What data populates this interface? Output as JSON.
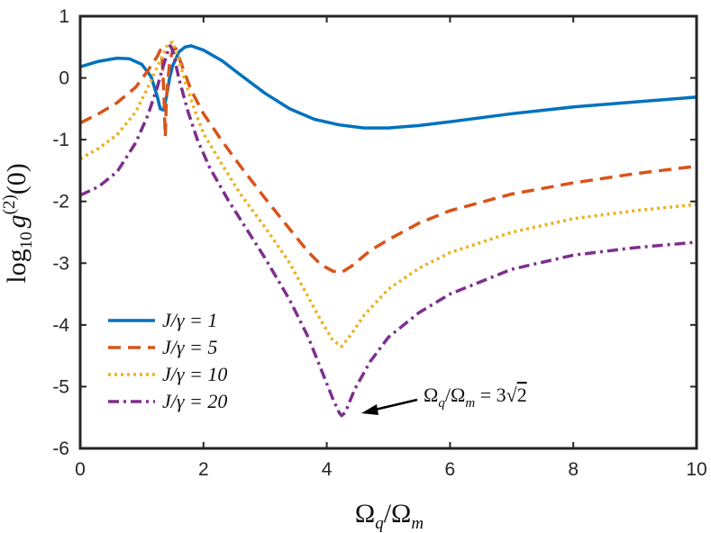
{
  "chart_data": {
    "type": "line",
    "xlabel": "Ω_q/Ω_m",
    "ylabel": "log10 g(2)(0)",
    "xlim": [
      0,
      10
    ],
    "ylim": [
      -6,
      1
    ],
    "xticks": [
      0,
      2,
      4,
      6,
      8,
      10
    ],
    "yticks": [
      1,
      0,
      -1,
      -2,
      -3,
      -4,
      -5,
      -6
    ],
    "grid": false,
    "legend_position": "bottom-left",
    "series": [
      {
        "name": "J/γ = 1",
        "color": "#0072BD",
        "dash": "solid",
        "points": [
          [
            0,
            0.18
          ],
          [
            0.3,
            0.27
          ],
          [
            0.6,
            0.32
          ],
          [
            0.8,
            0.31
          ],
          [
            1.0,
            0.22
          ],
          [
            1.15,
            0.02
          ],
          [
            1.25,
            -0.3
          ],
          [
            1.3,
            -0.5
          ],
          [
            1.35,
            -0.52
          ],
          [
            1.4,
            -0.3
          ],
          [
            1.45,
            0.0
          ],
          [
            1.5,
            0.2
          ],
          [
            1.55,
            0.3
          ],
          [
            1.6,
            0.42
          ],
          [
            1.7,
            0.5
          ],
          [
            1.8,
            0.52
          ],
          [
            2.0,
            0.45
          ],
          [
            2.3,
            0.28
          ],
          [
            2.6,
            0.05
          ],
          [
            3.0,
            -0.25
          ],
          [
            3.4,
            -0.5
          ],
          [
            3.8,
            -0.67
          ],
          [
            4.2,
            -0.76
          ],
          [
            4.6,
            -0.81
          ],
          [
            5.0,
            -0.81
          ],
          [
            5.5,
            -0.77
          ],
          [
            6.0,
            -0.71
          ],
          [
            7.0,
            -0.58
          ],
          [
            8.0,
            -0.47
          ],
          [
            9.0,
            -0.39
          ],
          [
            10.0,
            -0.31
          ]
        ]
      },
      {
        "name": "J/γ = 5",
        "color": "#D95319",
        "dash": "dashed",
        "points": [
          [
            0,
            -0.73
          ],
          [
            0.3,
            -0.58
          ],
          [
            0.6,
            -0.4
          ],
          [
            0.9,
            -0.15
          ],
          [
            1.1,
            0.12
          ],
          [
            1.25,
            0.35
          ],
          [
            1.3,
            0.45
          ],
          [
            1.33,
            0.3
          ],
          [
            1.36,
            -0.3
          ],
          [
            1.38,
            -0.95
          ],
          [
            1.4,
            -0.3
          ],
          [
            1.45,
            0.25
          ],
          [
            1.5,
            0.45
          ],
          [
            1.55,
            0.48
          ],
          [
            1.65,
            0.2
          ],
          [
            1.8,
            -0.2
          ],
          [
            2.0,
            -0.58
          ],
          [
            2.3,
            -1.02
          ],
          [
            2.6,
            -1.43
          ],
          [
            3.0,
            -1.95
          ],
          [
            3.4,
            -2.45
          ],
          [
            3.7,
            -2.82
          ],
          [
            3.9,
            -3.02
          ],
          [
            4.1,
            -3.13
          ],
          [
            4.24,
            -3.15
          ],
          [
            4.4,
            -3.05
          ],
          [
            4.7,
            -2.8
          ],
          [
            5.0,
            -2.62
          ],
          [
            5.5,
            -2.35
          ],
          [
            6.0,
            -2.15
          ],
          [
            7.0,
            -1.88
          ],
          [
            8.0,
            -1.7
          ],
          [
            9.0,
            -1.55
          ],
          [
            10.0,
            -1.43
          ]
        ]
      },
      {
        "name": "J/γ = 10",
        "color": "#EDB120",
        "dash": "dotted",
        "points": [
          [
            0,
            -1.31
          ],
          [
            0.3,
            -1.14
          ],
          [
            0.6,
            -0.92
          ],
          [
            0.9,
            -0.55
          ],
          [
            1.1,
            -0.15
          ],
          [
            1.25,
            0.18
          ],
          [
            1.35,
            0.38
          ],
          [
            1.42,
            0.55
          ],
          [
            1.5,
            0.58
          ],
          [
            1.58,
            0.35
          ],
          [
            1.7,
            -0.05
          ],
          [
            1.85,
            -0.5
          ],
          [
            2.0,
            -0.9
          ],
          [
            2.3,
            -1.4
          ],
          [
            2.6,
            -1.88
          ],
          [
            3.0,
            -2.42
          ],
          [
            3.4,
            -3.0
          ],
          [
            3.7,
            -3.55
          ],
          [
            3.9,
            -3.92
          ],
          [
            4.1,
            -4.25
          ],
          [
            4.24,
            -4.35
          ],
          [
            4.4,
            -4.15
          ],
          [
            4.6,
            -3.85
          ],
          [
            5.0,
            -3.42
          ],
          [
            5.5,
            -3.08
          ],
          [
            6.0,
            -2.83
          ],
          [
            7.0,
            -2.5
          ],
          [
            8.0,
            -2.28
          ],
          [
            9.0,
            -2.15
          ],
          [
            10.0,
            -2.05
          ]
        ]
      },
      {
        "name": "J/γ = 20",
        "color": "#7E2F8E",
        "dash": "dashdot",
        "points": [
          [
            0,
            -1.9
          ],
          [
            0.3,
            -1.76
          ],
          [
            0.6,
            -1.52
          ],
          [
            0.9,
            -1.05
          ],
          [
            1.1,
            -0.6
          ],
          [
            1.25,
            -0.15
          ],
          [
            1.35,
            0.2
          ],
          [
            1.42,
            0.42
          ],
          [
            1.46,
            0.52
          ],
          [
            1.5,
            0.45
          ],
          [
            1.6,
            0.0
          ],
          [
            1.75,
            -0.55
          ],
          [
            1.9,
            -1.0
          ],
          [
            2.1,
            -1.45
          ],
          [
            2.4,
            -1.98
          ],
          [
            2.7,
            -2.45
          ],
          [
            3.0,
            -2.92
          ],
          [
            3.4,
            -3.6
          ],
          [
            3.7,
            -4.2
          ],
          [
            3.9,
            -4.7
          ],
          [
            4.1,
            -5.2
          ],
          [
            4.2,
            -5.42
          ],
          [
            4.24,
            -5.47
          ],
          [
            4.3,
            -5.42
          ],
          [
            4.45,
            -5.05
          ],
          [
            4.7,
            -4.6
          ],
          [
            5.0,
            -4.2
          ],
          [
            5.5,
            -3.8
          ],
          [
            6.0,
            -3.5
          ],
          [
            7.0,
            -3.1
          ],
          [
            8.0,
            -2.87
          ],
          [
            9.0,
            -2.75
          ],
          [
            10.0,
            -2.66
          ]
        ]
      }
    ],
    "annotation": {
      "text": "Ω_q/Ω_m = 3√2",
      "x": 4.24,
      "y": -5.47
    }
  },
  "labels": {
    "x_axis": {
      "omega": "Ω",
      "sub_q": "q",
      "slash": "/",
      "sub_m": "m"
    },
    "y_axis": {
      "log": "log",
      "log_sub": "10",
      "g": "g",
      "sup": "(2)",
      "arg": "(0)"
    },
    "annotation": {
      "omega": "Ω",
      "sub_q": "q",
      "sub_m": "m",
      "eq": " = 3",
      "sqrt": "√",
      "two": "2"
    }
  }
}
